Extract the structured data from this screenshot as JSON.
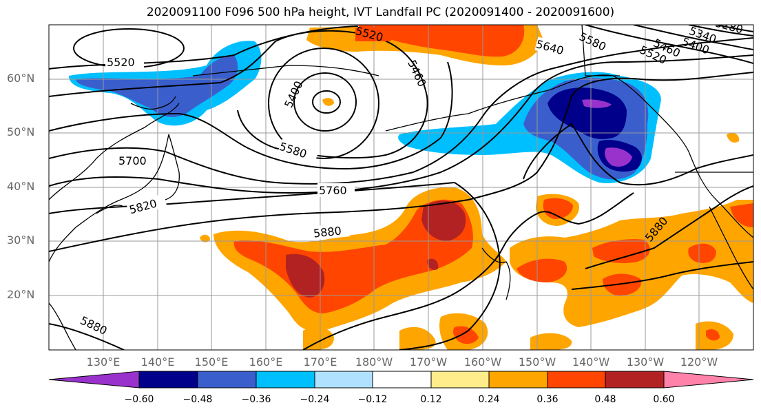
{
  "title": "2020091100 F096 500 hPa height, IVT Landfall PC (2020091400 - 2020091600)",
  "lat_labels": [
    "60°N",
    "50°N",
    "40°N",
    "30°N",
    "20°N"
  ],
  "lon_labels": [
    "130°E",
    "140°E",
    "150°E",
    "160°E",
    "170°E",
    "180°W",
    "170°W",
    "160°W",
    "150°W",
    "140°W",
    "130°W",
    "120°W"
  ],
  "contour_labels": [
    "5520",
    "5520",
    "5460",
    "5400",
    "5580",
    "5700",
    "5820",
    "5760",
    "5880",
    "5880",
    "5640",
    "5580",
    "5520",
    "5460",
    "5400",
    "5340",
    "5280",
    "5880"
  ],
  "colorbar": {
    "ticks": [
      "−0.60",
      "−0.48",
      "−0.36",
      "−0.24",
      "−0.12",
      "0.12",
      "0.24",
      "0.36",
      "0.48",
      "0.60"
    ],
    "colors": [
      "#9932cc",
      "#00008b",
      "#3a5fcd",
      "#00bfff",
      "#b0e2ff",
      "#ffffff",
      "#ffec8b",
      "#ffa500",
      "#ff4500",
      "#b22222",
      "#ff82ab"
    ]
  }
}
